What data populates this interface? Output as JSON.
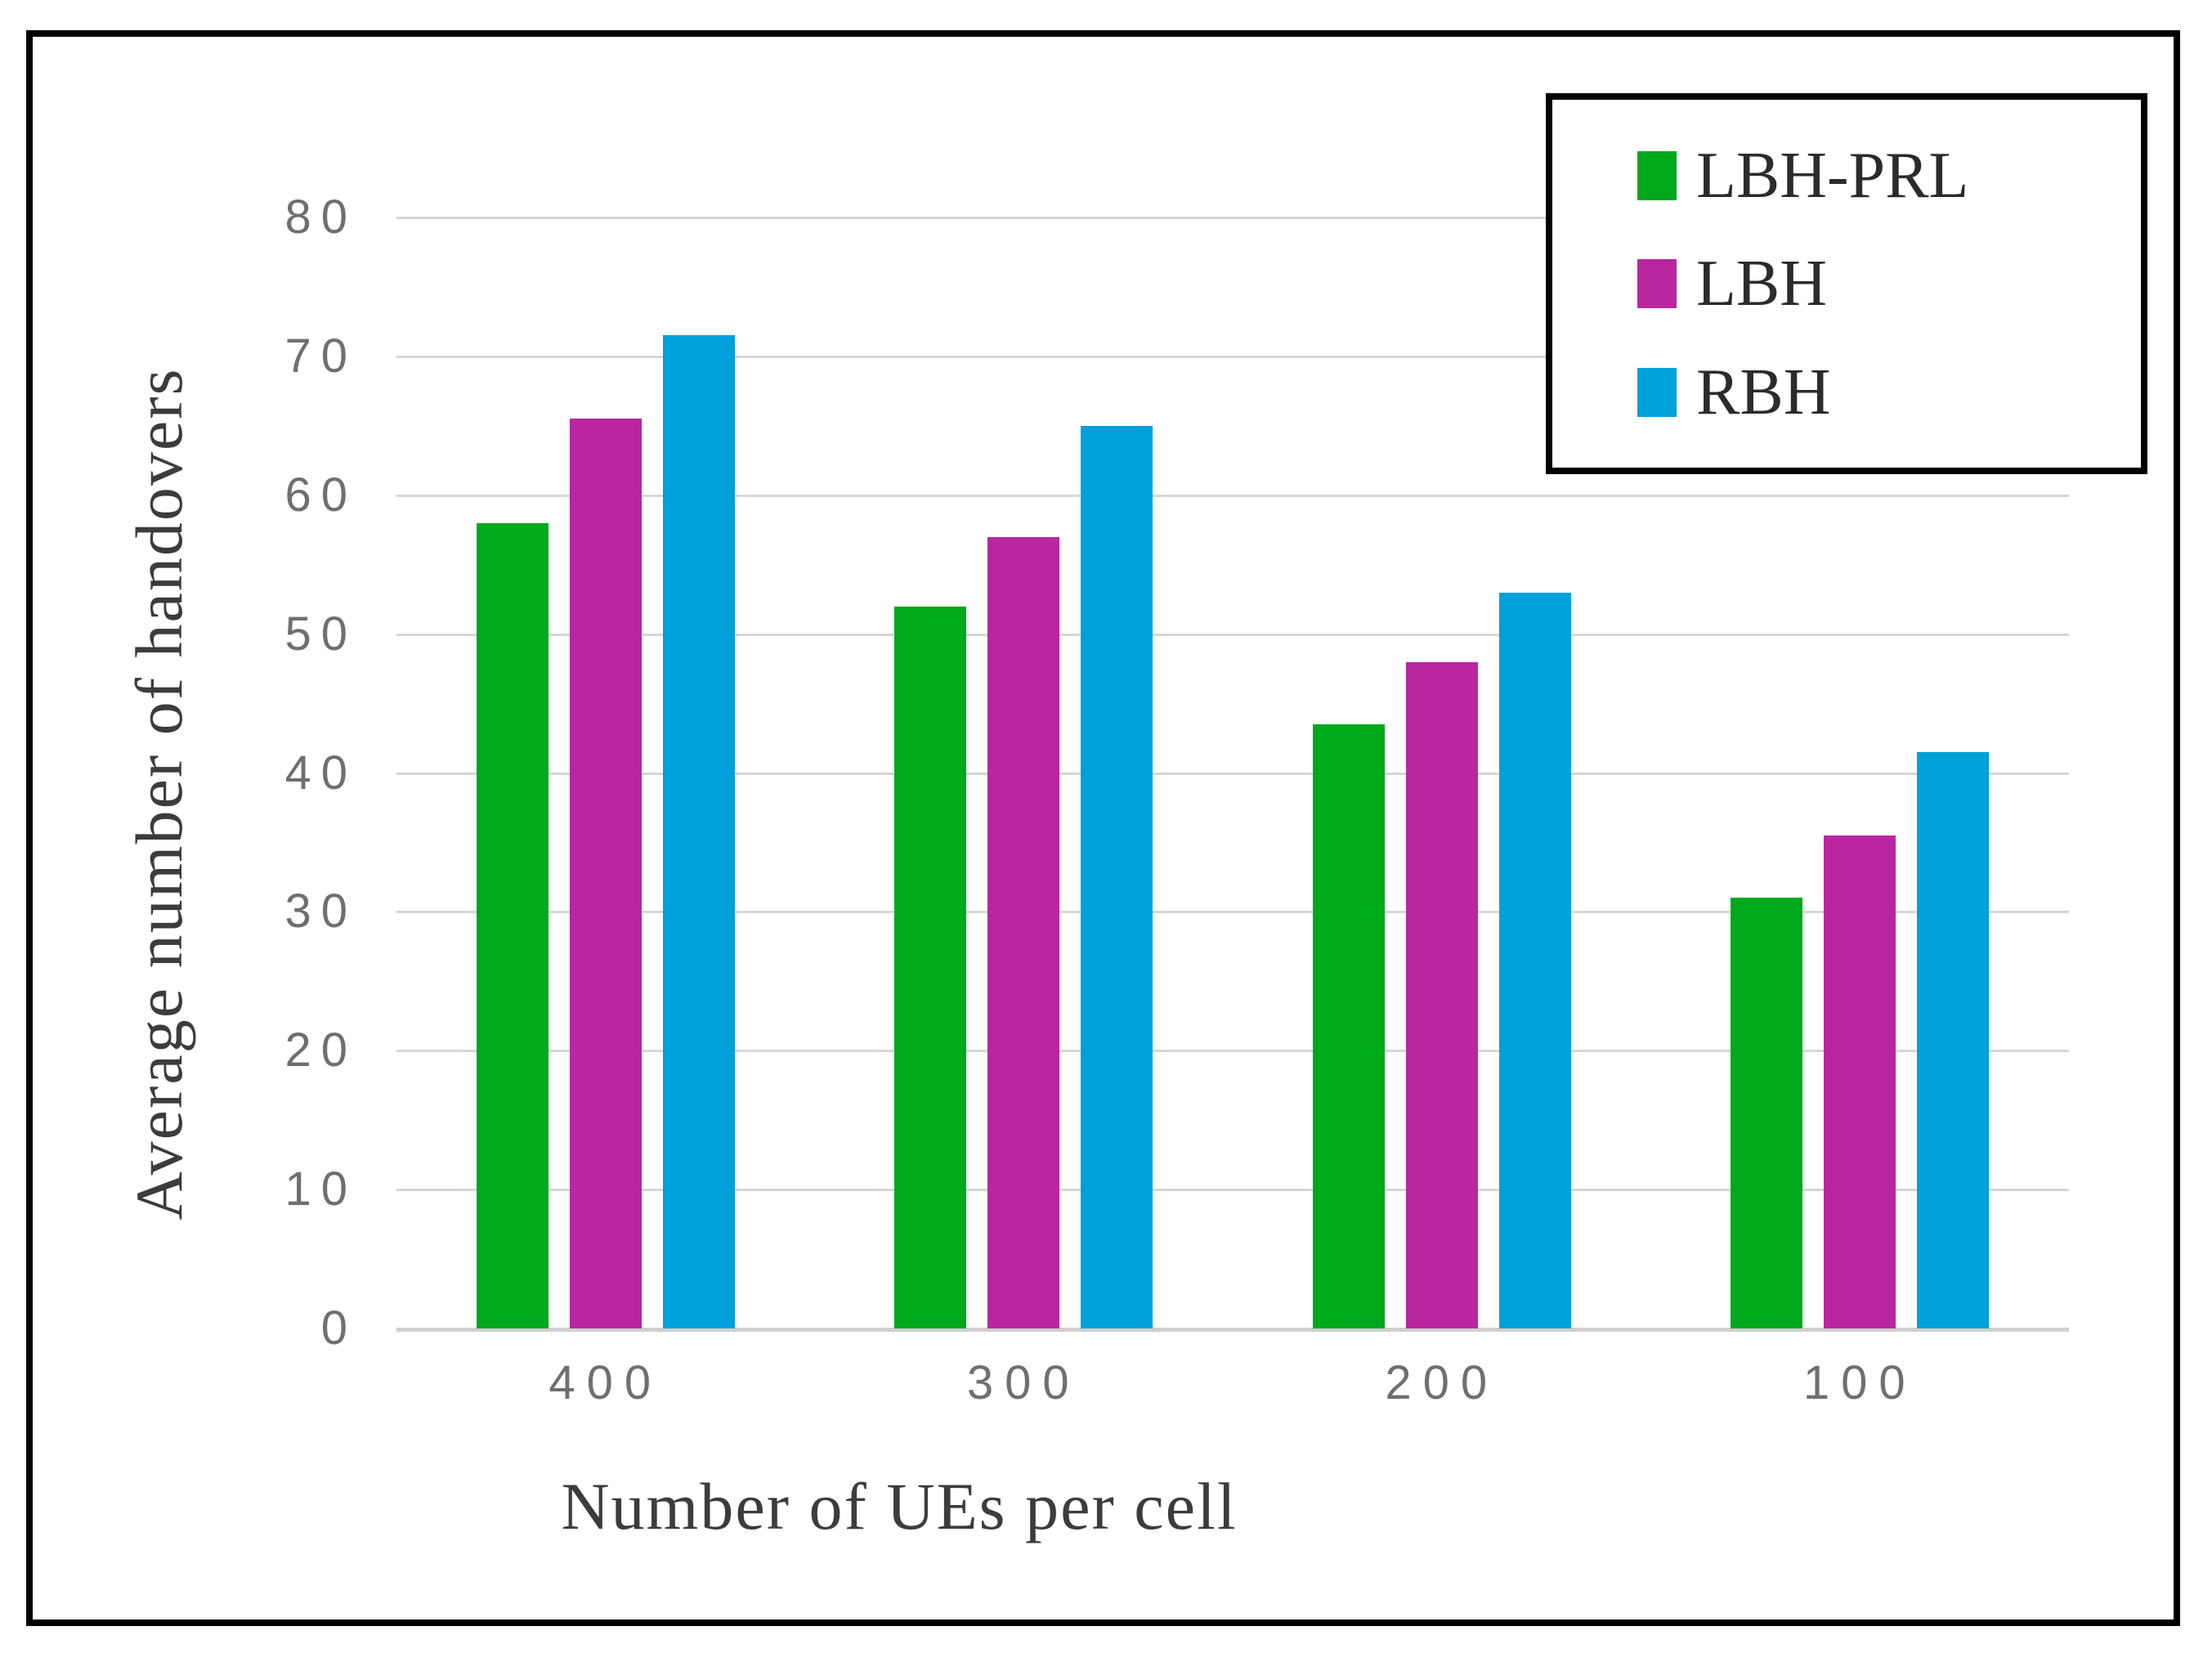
{
  "chart_data": {
    "type": "bar",
    "title": "",
    "categories": [
      "400",
      "300",
      "200",
      "100"
    ],
    "series": [
      {
        "name": "LBH-PRL",
        "color": "#00a81c",
        "values": [
          58,
          52,
          43.5,
          31
        ]
      },
      {
        "name": "LBH",
        "color": "#b9269f",
        "values": [
          65.5,
          57,
          48,
          35.5
        ]
      },
      {
        "name": "RBH",
        "color": "#00a0da",
        "values": [
          71.5,
          65,
          53,
          41.5
        ]
      }
    ],
    "xlabel": "Number of UEs per cell",
    "ylabel": "Average number of handovers",
    "ylim": [
      0,
      80
    ],
    "yticks": [
      0,
      10,
      20,
      30,
      40,
      50,
      60,
      70,
      80
    ],
    "grid": true,
    "legend_position": "top-right"
  },
  "colors": {
    "background": "#ffffff",
    "frame_border": "#000000",
    "legend_border": "#000000",
    "gridline": "#d6d6d6",
    "baseline": "#cfcfcf",
    "tick_label": "#6f6f6f",
    "axis_title": "#3c3c3c",
    "legend_text": "#2b2b2b",
    "series_green": "#00a81c",
    "series_magenta": "#b9269f",
    "series_blue": "#00a0da"
  }
}
